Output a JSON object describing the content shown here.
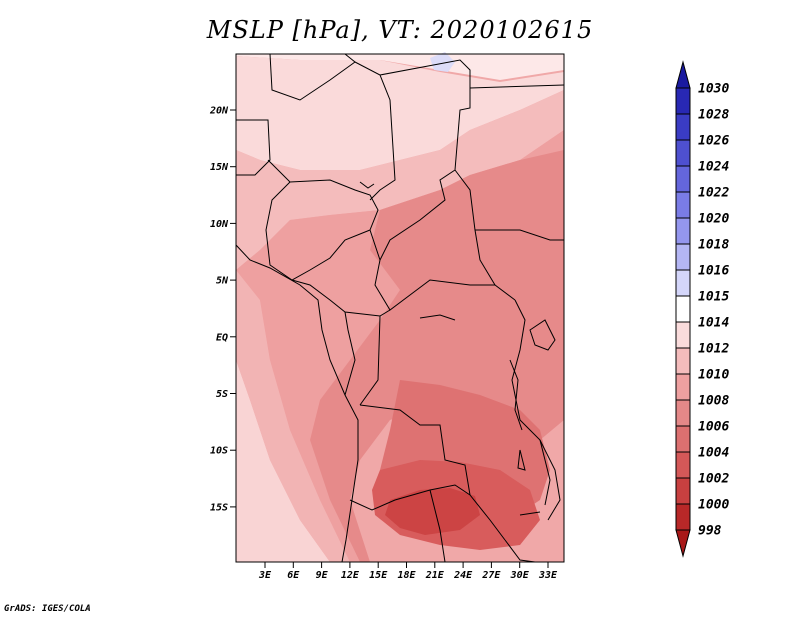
{
  "title": "MSLP [hPa], VT: 2020102615",
  "credit": "GrADS: IGES/COLA",
  "map": {
    "lat_ticks": [
      "20N",
      "15N",
      "10N",
      "5N",
      "EQ",
      "5S",
      "10S",
      "15S"
    ],
    "lon_ticks": [
      "3E",
      "6E",
      "9E",
      "12E",
      "15E",
      "18E",
      "21E",
      "24E",
      "27E",
      "30E",
      "33E"
    ]
  },
  "colorbar": {
    "levels": [
      "1030",
      "1028",
      "1026",
      "1024",
      "1022",
      "1020",
      "1018",
      "1016",
      "1015",
      "1014",
      "1012",
      "1010",
      "1008",
      "1006",
      "1004",
      "1002",
      "1000",
      "998"
    ],
    "colors": [
      "#1a1aa0",
      "#2828b4",
      "#3a3cc4",
      "#4e50d0",
      "#6466dc",
      "#7a7ce6",
      "#9496ee",
      "#b4b6f4",
      "#d4d6fa",
      "#ffffff",
      "#fadcdc",
      "#f4bcbc",
      "#eea0a0",
      "#e48888",
      "#dc7070",
      "#d45858",
      "#c84040",
      "#b82828",
      "#a81818"
    ]
  }
}
